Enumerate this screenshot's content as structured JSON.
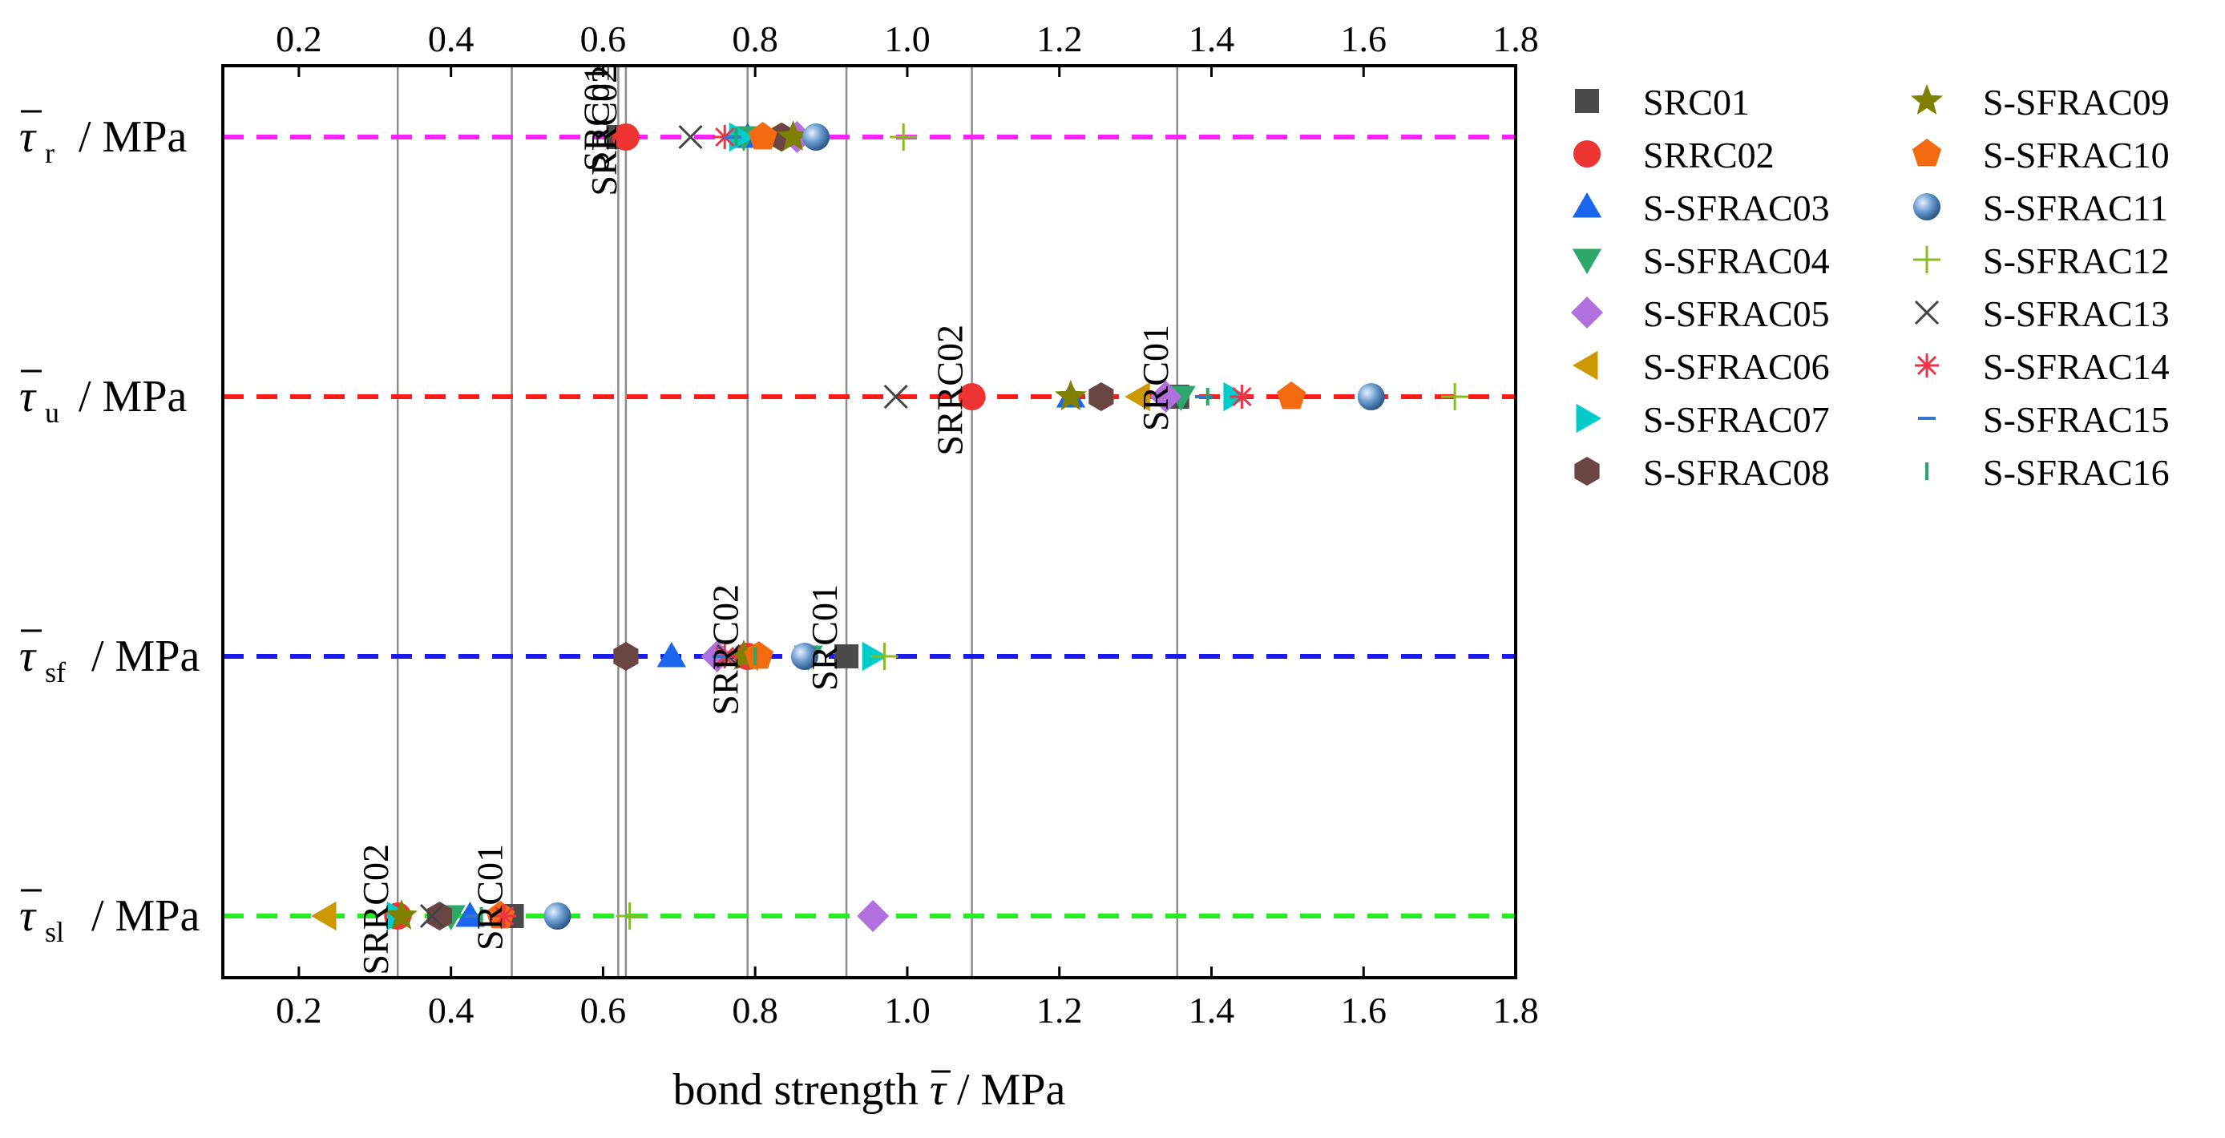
{
  "chart_data": {
    "type": "scatter",
    "title": "",
    "xlabel": "bond strength",
    "xlabel_symbol": "τ",
    "xlabel_unit": "/ MPa",
    "xlim": [
      0.1,
      1.8
    ],
    "xticks": [
      "0.2",
      "0.4",
      "0.6",
      "0.8",
      "1.0",
      "1.2",
      "1.4",
      "1.6",
      "1.8"
    ],
    "categories": [
      {
        "key": "r",
        "symbol": "τ",
        "sub": "r",
        "unit": "/ MPa",
        "color": "#ff22ff"
      },
      {
        "key": "u",
        "symbol": "τ",
        "sub": "u",
        "unit": "/ MPa",
        "color": "#ff1a1a"
      },
      {
        "key": "sf",
        "symbol": "τ",
        "sub": "sf",
        "unit": "/ MPa",
        "color": "#1a1aee"
      },
      {
        "key": "sl",
        "symbol": "τ",
        "sub": "sl",
        "unit": "/ MPa",
        "color": "#22ee22"
      }
    ],
    "reference_lines": [
      {
        "x": 0.62,
        "label": "SRC01",
        "row": "r"
      },
      {
        "x": 0.63,
        "label": "SRRC02",
        "row": "r"
      },
      {
        "x": 1.085,
        "label": "SRRC02",
        "row": "u"
      },
      {
        "x": 1.355,
        "label": "SRC01",
        "row": "u"
      },
      {
        "x": 0.79,
        "label": "SRRC02",
        "row": "sf"
      },
      {
        "x": 0.92,
        "label": "SRC01",
        "row": "sf"
      },
      {
        "x": 0.33,
        "label": "SRRC02",
        "row": "sl"
      },
      {
        "x": 0.48,
        "label": "SRC01",
        "row": "sl"
      }
    ],
    "series": [
      {
        "name": "SRC01",
        "marker": "square",
        "color": "#4a4a4a",
        "values": {
          "r": 0.62,
          "u": 1.355,
          "sf": 0.92,
          "sl": 0.48
        }
      },
      {
        "name": "SRRC02",
        "marker": "circle",
        "color": "#ee3333",
        "values": {
          "r": 0.63,
          "u": 1.085,
          "sf": 0.79,
          "sl": 0.33
        }
      },
      {
        "name": "S-SFRAC03",
        "marker": "triangle-up",
        "color": "#1a66ee",
        "values": {
          "r": 0.79,
          "u": 1.215,
          "sf": 0.69,
          "sl": 0.425
        }
      },
      {
        "name": "S-SFRAC04",
        "marker": "triangle-down",
        "color": "#2ea86a",
        "values": {
          "r": 0.785,
          "u": 1.36,
          "sf": 0.87,
          "sl": 0.4
        }
      },
      {
        "name": "S-SFRAC05",
        "marker": "diamond",
        "color": "#b070dd",
        "values": {
          "r": 0.855,
          "u": 1.34,
          "sf": 0.75,
          "sl": 0.955
        }
      },
      {
        "name": "S-SFRAC06",
        "marker": "triangle-left",
        "color": "#cc9900",
        "values": {
          "r": 0.82,
          "u": 1.305,
          "sf": 0.79,
          "sl": 0.235
        }
      },
      {
        "name": "S-SFRAC07",
        "marker": "triangle-right",
        "color": "#00cccc",
        "values": {
          "r": 0.78,
          "u": 1.43,
          "sf": 0.955,
          "sl": 0.33
        }
      },
      {
        "name": "S-SFRAC08",
        "marker": "hexagon",
        "color": "#6b4444",
        "values": {
          "r": 0.835,
          "u": 1.255,
          "sf": 0.63,
          "sl": 0.385
        }
      },
      {
        "name": "S-SFRAC09",
        "marker": "star",
        "color": "#808000",
        "values": {
          "r": 0.85,
          "u": 1.215,
          "sf": 0.785,
          "sl": 0.335
        }
      },
      {
        "name": "S-SFRAC10",
        "marker": "pentagon",
        "color": "#f36a10",
        "values": {
          "r": 0.81,
          "u": 1.505,
          "sf": 0.805,
          "sl": 0.465
        }
      },
      {
        "name": "S-SFRAC11",
        "marker": "sphere",
        "color": "#6699cc",
        "values": {
          "r": 0.88,
          "u": 1.61,
          "sf": 0.865,
          "sl": 0.54
        }
      },
      {
        "name": "S-SFRAC12",
        "marker": "plus",
        "color": "#88bb22",
        "values": {
          "r": 0.995,
          "u": 1.72,
          "sf": 0.97,
          "sl": 0.635
        }
      },
      {
        "name": "S-SFRAC13",
        "marker": "x",
        "color": "#444444",
        "values": {
          "r": 0.715,
          "u": 0.985,
          "sf": 0.765,
          "sl": 0.375
        }
      },
      {
        "name": "S-SFRAC14",
        "marker": "asterisk",
        "color": "#ee3344",
        "values": {
          "r": 0.76,
          "u": 1.44,
          "sf": 0.76,
          "sl": 0.47
        }
      },
      {
        "name": "S-SFRAC15",
        "marker": "hline",
        "color": "#3377cc",
        "values": {
          "r": 0.77,
          "u": 1.39,
          "sf": 0.755,
          "sl": 0.43
        }
      },
      {
        "name": "S-SFRAC16",
        "marker": "vline",
        "color": "#22aa66",
        "values": {
          "r": 0.775,
          "u": 1.395,
          "sf": 0.8,
          "sl": 0.44
        }
      }
    ]
  }
}
